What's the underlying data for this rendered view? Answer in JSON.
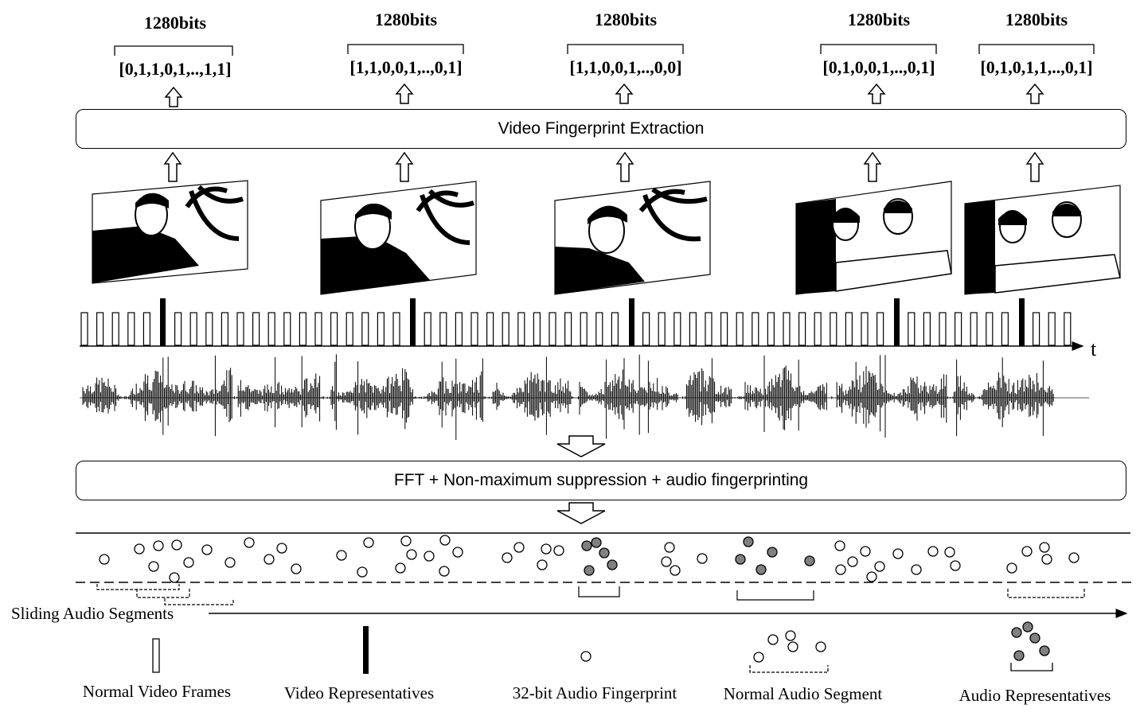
{
  "fingerprint_columns": [
    {
      "bits_label": "1280bits",
      "vector": "[0,1,1,0,1,..,1,1]"
    },
    {
      "bits_label": "1280bits",
      "vector": "[1,1,0,0,1,..,0,1]"
    },
    {
      "bits_label": "1280bits",
      "vector": "[1,1,0,0,1,..,0,0]"
    },
    {
      "bits_label": "1280bits",
      "vector": "[0,1,0,0,1,..,0,1]"
    },
    {
      "bits_label": "1280bits",
      "vector": "[0,1,0,1,1,..,0,1]"
    }
  ],
  "video_box_label": "Video Fingerprint Extraction",
  "audio_box_label": "FFT + Non-maximum suppression + audio fingerprinting",
  "time_axis_label": "t",
  "sliding_label": "Sliding Audio Segments",
  "legend": {
    "normal_frames": "Normal Video Frames",
    "video_reps": "Video Representatives",
    "audio_fp": "32-bit Audio Fingerprint",
    "normal_segment": "Normal Audio Segment",
    "audio_reps": "Audio Representatives"
  },
  "colors": {
    "line": "#000000",
    "filled_circle": "#808080",
    "background": "#ffffff"
  }
}
